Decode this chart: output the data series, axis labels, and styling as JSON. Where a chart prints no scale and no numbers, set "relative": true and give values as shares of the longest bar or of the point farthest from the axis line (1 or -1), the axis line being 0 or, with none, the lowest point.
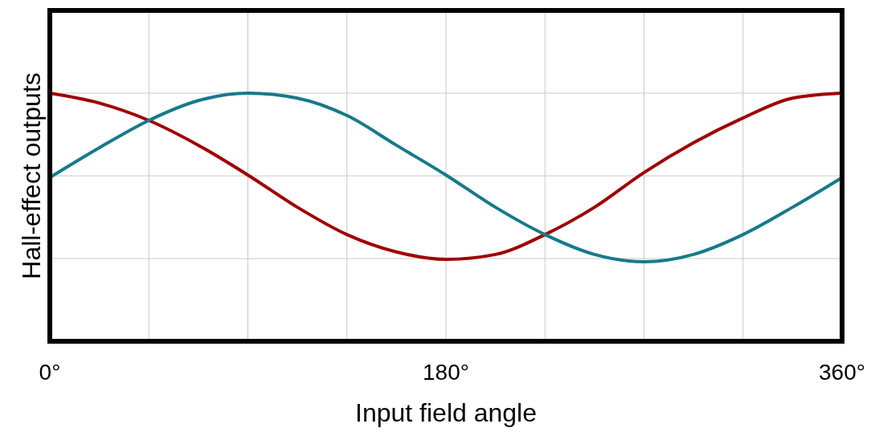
{
  "chart_data": {
    "type": "line",
    "xlabel": "Input field angle",
    "ylabel": "Hall-effect outputs",
    "relative": true,
    "grid": true,
    "line_style": "solid",
    "marker": "none",
    "x": [
      0,
      22.5,
      45,
      67.5,
      90,
      112.5,
      135,
      157.5,
      180,
      202.5,
      225,
      247.5,
      270,
      292.5,
      315,
      337.5,
      360
    ],
    "xlim": [
      0,
      360
    ],
    "xticks": [
      {
        "value": 0,
        "label": "0°"
      },
      {
        "value": 45,
        "label": null
      },
      {
        "value": 90,
        "label": null
      },
      {
        "value": 135,
        "label": null
      },
      {
        "value": 180,
        "label": "180°"
      },
      {
        "value": 225,
        "label": null
      },
      {
        "value": 270,
        "label": null
      },
      {
        "value": 315,
        "label": null
      },
      {
        "value": 360,
        "label": "360°"
      }
    ],
    "series": [
      {
        "color": "#a00000",
        "values": [
          1,
          0.96,
          0.89,
          0.79,
          0.67,
          0.54,
          0.43,
          0.36,
          0.33,
          0.35,
          0.43,
          0.54,
          0.68,
          0.8,
          0.9,
          0.98,
          1
        ]
      },
      {
        "color": "#167a8a",
        "values": [
          0.66,
          0.78,
          0.89,
          0.97,
          1,
          0.98,
          0.91,
          0.79,
          0.67,
          0.54,
          0.43,
          0.35,
          0.32,
          0.35,
          0.43,
          0.54,
          0.66
        ]
      }
    ]
  }
}
